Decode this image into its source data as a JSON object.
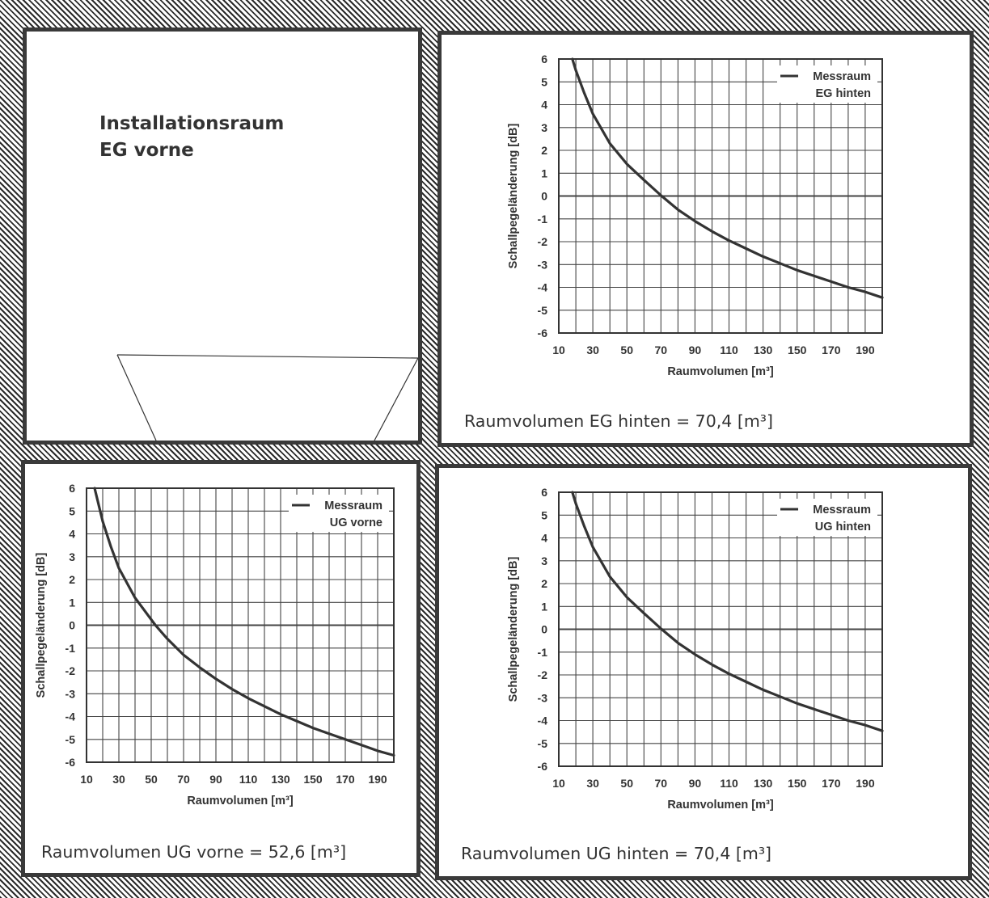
{
  "rooms": {
    "installation": {
      "title_line1": "Installationsraum",
      "title_line2": "EG vorne"
    },
    "eg_hinten": {
      "volume_note": "Raumvolumen EG hinten = 70,4 [m³]"
    },
    "ug_vorne": {
      "volume_note": "Raumvolumen UG vorne = 52,6 [m³]"
    },
    "ug_hinten": {
      "volume_note": "Raumvolumen UG hinten = 70,4 [m³]"
    }
  },
  "chart_data": [
    {
      "type": "line",
      "ylabel": "Schallpegeländerung [dB]",
      "xlabel": "Raumvolumen [m³]",
      "xlim": [
        10,
        200
      ],
      "ylim": [
        -6,
        6
      ],
      "xticks": [
        10,
        30,
        50,
        70,
        90,
        110,
        130,
        150,
        170,
        190
      ],
      "yticks": [
        6,
        5,
        4,
        3,
        2,
        1,
        0,
        -1,
        -2,
        -3,
        -4,
        -5,
        -6
      ],
      "grid": true,
      "legend_position": "top-right",
      "series": [
        {
          "name": "Messraum EG hinten",
          "name_lines": [
            "Messraum",
            "EG hinten"
          ],
          "color": "#333333",
          "x": [
            18,
            20,
            25,
            30,
            40,
            50,
            60,
            70.4,
            80,
            90,
            100,
            110,
            120,
            130,
            140,
            150,
            160,
            170,
            180,
            190,
            200
          ],
          "y": [
            6.0,
            5.5,
            4.5,
            3.6,
            2.3,
            1.4,
            0.7,
            0.0,
            -0.6,
            -1.1,
            -1.55,
            -1.95,
            -2.3,
            -2.65,
            -2.95,
            -3.25,
            -3.5,
            -3.75,
            -4.0,
            -4.2,
            -4.45
          ]
        }
      ]
    },
    {
      "type": "line",
      "ylabel": "Schallpegeländerung [dB]",
      "xlabel": "Raumvolumen [m³]",
      "xlim": [
        10,
        200
      ],
      "ylim": [
        -6,
        6
      ],
      "xticks": [
        10,
        30,
        50,
        70,
        90,
        110,
        130,
        150,
        170,
        190
      ],
      "yticks": [
        6,
        5,
        4,
        3,
        2,
        1,
        0,
        -1,
        -2,
        -3,
        -4,
        -5,
        -6
      ],
      "grid": true,
      "legend_position": "top-right",
      "series": [
        {
          "name": "Messraum UG vorne",
          "name_lines": [
            "Messraum",
            "UG vorne"
          ],
          "color": "#333333",
          "x": [
            15,
            20,
            25,
            30,
            40,
            52.6,
            60,
            70,
            80,
            90,
            100,
            110,
            120,
            130,
            140,
            150,
            160,
            170,
            180,
            190,
            200
          ],
          "y": [
            6.0,
            4.55,
            3.45,
            2.5,
            1.2,
            0.0,
            -0.6,
            -1.3,
            -1.85,
            -2.35,
            -2.8,
            -3.2,
            -3.55,
            -3.9,
            -4.2,
            -4.5,
            -4.75,
            -5.0,
            -5.25,
            -5.5,
            -5.7
          ]
        }
      ]
    },
    {
      "type": "line",
      "ylabel": "Schallpegeländerung [dB]",
      "xlabel": "Raumvolumen [m³]",
      "xlim": [
        10,
        200
      ],
      "ylim": [
        -6,
        6
      ],
      "xticks": [
        10,
        30,
        50,
        70,
        90,
        110,
        130,
        150,
        170,
        190
      ],
      "yticks": [
        6,
        5,
        4,
        3,
        2,
        1,
        0,
        -1,
        -2,
        -3,
        -4,
        -5,
        -6
      ],
      "grid": true,
      "legend_position": "top-right",
      "series": [
        {
          "name": "Messraum UG hinten",
          "name_lines": [
            "Messraum",
            "UG hinten"
          ],
          "color": "#333333",
          "x": [
            18,
            20,
            25,
            30,
            40,
            50,
            60,
            70.4,
            80,
            90,
            100,
            110,
            120,
            130,
            140,
            150,
            160,
            170,
            180,
            190,
            200
          ],
          "y": [
            6.0,
            5.5,
            4.5,
            3.6,
            2.3,
            1.4,
            0.7,
            0.0,
            -0.6,
            -1.1,
            -1.55,
            -1.95,
            -2.3,
            -2.65,
            -2.95,
            -3.25,
            -3.5,
            -3.75,
            -4.0,
            -4.2,
            -4.45
          ]
        }
      ]
    }
  ]
}
